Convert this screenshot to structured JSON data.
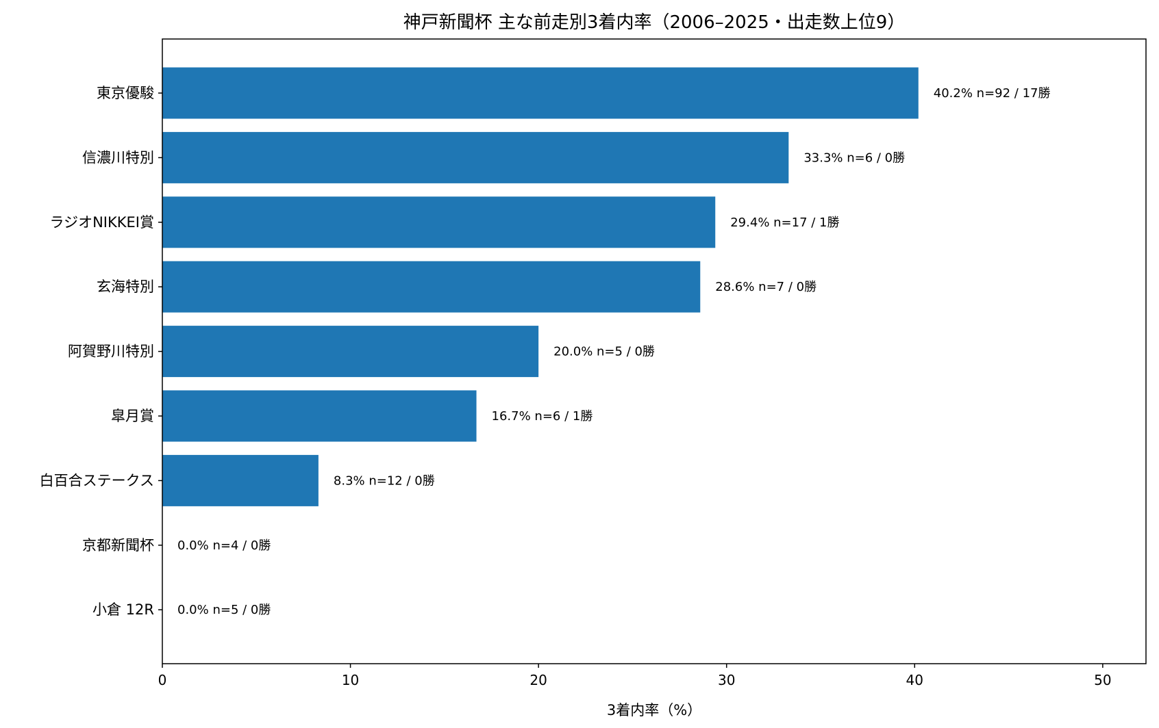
{
  "chart_data": {
    "type": "bar",
    "orientation": "horizontal",
    "title": "神戸新聞杯 主な前走別3着内率（2006–2025・出走数上位9）",
    "xlabel": "3着内率（%）",
    "ylabel": "",
    "xlim": [
      0,
      52.3
    ],
    "xticks": [
      "0",
      "10",
      "20",
      "30",
      "40",
      "50"
    ],
    "grid": false,
    "bar_color": "#1f77b4",
    "categories": [
      "東京優駿",
      "信濃川特別",
      "ラジオNIKKEI賞",
      "玄海特別",
      "阿賀野川特別",
      "皐月賞",
      "白百合ステークス",
      "京都新聞杯",
      "小倉 12R"
    ],
    "values": [
      40.2,
      33.3,
      29.4,
      28.6,
      20.0,
      16.7,
      8.3,
      0.0,
      0.0
    ],
    "data_labels": [
      "40.2%  n=92 / 17勝",
      "33.3%  n=6 / 0勝",
      "29.4%  n=17 / 1勝",
      "28.6%  n=7 / 0勝",
      "20.0%  n=5 / 0勝",
      "16.7%  n=6 / 1勝",
      "8.3%  n=12 / 0勝",
      "0.0%  n=4 / 0勝",
      "0.0%  n=5 / 0勝"
    ]
  }
}
